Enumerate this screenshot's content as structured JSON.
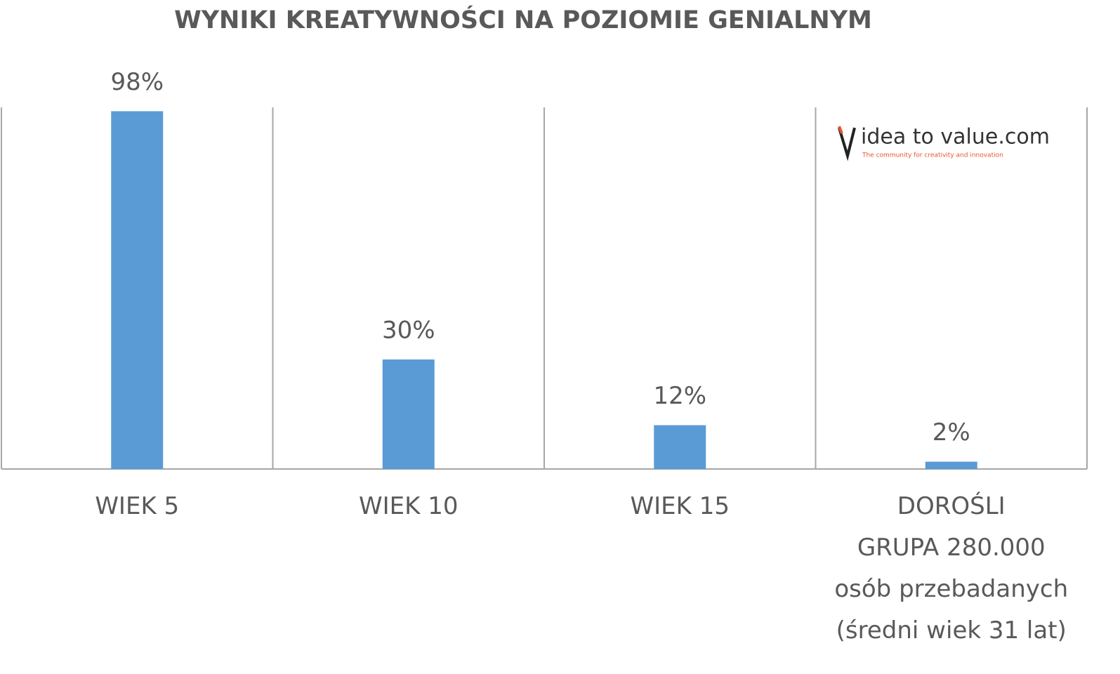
{
  "chart_data": {
    "type": "bar",
    "title": "WYNIKI KREATYWNOŚCI NA POZIOMIE GENIALNYM",
    "categories": [
      "WIEK 5",
      "WIEK 10",
      "WIEK 15",
      "DOROŚLI\nGRUPA 280.000\nosób przebadanych\n(średni wiek 31 lat)"
    ],
    "values": [
      98,
      30,
      12,
      2
    ],
    "value_labels": [
      "98%",
      "30%",
      "12%",
      "2%"
    ],
    "color": "#5b9bd5",
    "ylim": [
      0,
      100
    ]
  },
  "logo": {
    "text": "idea to value.com",
    "tagline": "The community for creativity and innovation"
  }
}
